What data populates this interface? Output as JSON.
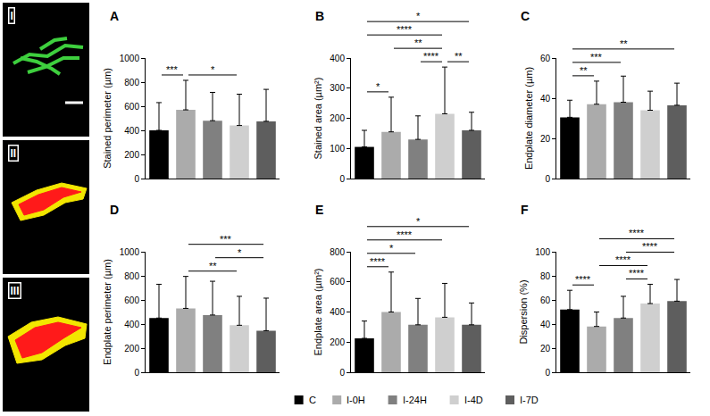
{
  "images": [
    {
      "label": "I"
    },
    {
      "label": "II"
    },
    {
      "label": "III"
    }
  ],
  "chart_data": [
    {
      "type": "bar",
      "title": "A",
      "ylabel": "Stained perimeter (µm)",
      "categories": [
        "C",
        "I-0H",
        "I-24H",
        "I-4D",
        "I-7D"
      ],
      "values": [
        400,
        570,
        480,
        440,
        475
      ],
      "errors": [
        230,
        245,
        235,
        260,
        265
      ],
      "colors": [
        "#000000",
        "#ababab",
        "#808080",
        "#cfcfcf",
        "#5e5e5e"
      ],
      "ylim": [
        0,
        1000
      ],
      "yticks": [
        0,
        200,
        400,
        600,
        800,
        1000
      ],
      "grid": false,
      "tick_labels": "y",
      "legend": "bottom",
      "significance": [
        {
          "from": "C",
          "to": "I-0H",
          "label": "***"
        },
        {
          "from": "I-0H",
          "to": "I-4D",
          "label": "*"
        }
      ]
    },
    {
      "type": "bar",
      "title": "B",
      "ylabel": "Stained area (µm²)",
      "categories": [
        "C",
        "I-0H",
        "I-24H",
        "I-4D",
        "I-7D"
      ],
      "values": [
        105,
        155,
        130,
        215,
        160
      ],
      "errors": [
        55,
        115,
        78,
        155,
        60
      ],
      "colors": [
        "#000000",
        "#ababab",
        "#808080",
        "#cfcfcf",
        "#5e5e5e"
      ],
      "ylim": [
        0,
        400
      ],
      "yticks": [
        0,
        100,
        200,
        300,
        400
      ],
      "grid": false,
      "tick_labels": "y",
      "legend": "bottom",
      "significance": [
        {
          "from": "C",
          "to": "I-7D",
          "label": "*"
        },
        {
          "from": "C",
          "to": "I-4D",
          "label": "****"
        },
        {
          "from": "I-0H",
          "to": "I-4D",
          "label": "**"
        },
        {
          "from": "I-4D",
          "to": "I-7D",
          "label": "**"
        },
        {
          "from": "C",
          "to": "I-0H",
          "label": "*"
        },
        {
          "from": "I-24H",
          "to": "I-4D",
          "label": "****"
        }
      ]
    },
    {
      "type": "bar",
      "title": "C",
      "ylabel": "Endplate diameter (µm)",
      "categories": [
        "C",
        "I-0H",
        "I-24H",
        "I-4D",
        "I-7D"
      ],
      "values": [
        30.5,
        37,
        38,
        34,
        36.5
      ],
      "errors": [
        8.5,
        11.5,
        13,
        9.5,
        11
      ],
      "colors": [
        "#000000",
        "#ababab",
        "#808080",
        "#cfcfcf",
        "#5e5e5e"
      ],
      "ylim": [
        0,
        60
      ],
      "yticks": [
        0,
        20,
        40,
        60
      ],
      "grid": false,
      "tick_labels": "y",
      "legend": "bottom",
      "significance": [
        {
          "from": "C",
          "to": "I-0H",
          "label": "**"
        },
        {
          "from": "C",
          "to": "I-24H",
          "label": "***"
        },
        {
          "from": "C",
          "to": "I-7D",
          "label": "**"
        }
      ]
    },
    {
      "type": "bar",
      "title": "D",
      "ylabel": "Endplate perimeter (µm)",
      "categories": [
        "C",
        "I-0H",
        "I-24H",
        "I-4D",
        "I-7D"
      ],
      "values": [
        450,
        530,
        475,
        390,
        345
      ],
      "errors": [
        280,
        265,
        280,
        240,
        270
      ],
      "colors": [
        "#000000",
        "#ababab",
        "#808080",
        "#cfcfcf",
        "#5e5e5e"
      ],
      "ylim": [
        0,
        1000
      ],
      "yticks": [
        0,
        200,
        400,
        600,
        800,
        1000
      ],
      "grid": false,
      "tick_labels": "y",
      "legend": "bottom",
      "significance": [
        {
          "from": "I-0H",
          "to": "I-7D",
          "label": "***"
        },
        {
          "from": "I-24H",
          "to": "I-7D",
          "label": "*"
        },
        {
          "from": "I-0H",
          "to": "I-4D",
          "label": "**"
        }
      ]
    },
    {
      "type": "bar",
      "title": "E",
      "ylabel": "Endplate area (µm²)",
      "categories": [
        "C",
        "I-0H",
        "I-24H",
        "I-4D",
        "I-7D"
      ],
      "values": [
        225,
        400,
        315,
        365,
        315
      ],
      "errors": [
        115,
        265,
        175,
        225,
        145
      ],
      "colors": [
        "#000000",
        "#ababab",
        "#808080",
        "#cfcfcf",
        "#5e5e5e"
      ],
      "ylim": [
        0,
        800
      ],
      "yticks": [
        0,
        200,
        400,
        600,
        800
      ],
      "grid": false,
      "tick_labels": "y",
      "legend": "bottom",
      "significance": [
        {
          "from": "C",
          "to": "I-7D",
          "label": "*"
        },
        {
          "from": "C",
          "to": "I-4D",
          "label": "****"
        },
        {
          "from": "C",
          "to": "I-24H",
          "label": "*"
        },
        {
          "from": "C",
          "to": "I-0H",
          "label": "****"
        }
      ]
    },
    {
      "type": "bar",
      "title": "F",
      "ylabel": "Dispersion (%)",
      "categories": [
        "C",
        "I-0H",
        "I-24H",
        "I-4D",
        "I-7D"
      ],
      "values": [
        52,
        38,
        45,
        57,
        59
      ],
      "errors": [
        16,
        12,
        18,
        16,
        18
      ],
      "colors": [
        "#000000",
        "#ababab",
        "#808080",
        "#cfcfcf",
        "#5e5e5e"
      ],
      "ylim": [
        0,
        100
      ],
      "yticks": [
        0,
        20,
        40,
        60,
        80,
        100
      ],
      "grid": false,
      "tick_labels": "y",
      "legend": "bottom",
      "significance": [
        {
          "from": "I-0H",
          "to": "I-7D",
          "label": "****"
        },
        {
          "from": "I-24H",
          "to": "I-7D",
          "label": "****"
        },
        {
          "from": "I-0H",
          "to": "I-4D",
          "label": "****"
        },
        {
          "from": "C",
          "to": "I-0H",
          "label": "****"
        },
        {
          "from": "I-24H",
          "to": "I-4D",
          "label": "****"
        }
      ]
    }
  ]
}
